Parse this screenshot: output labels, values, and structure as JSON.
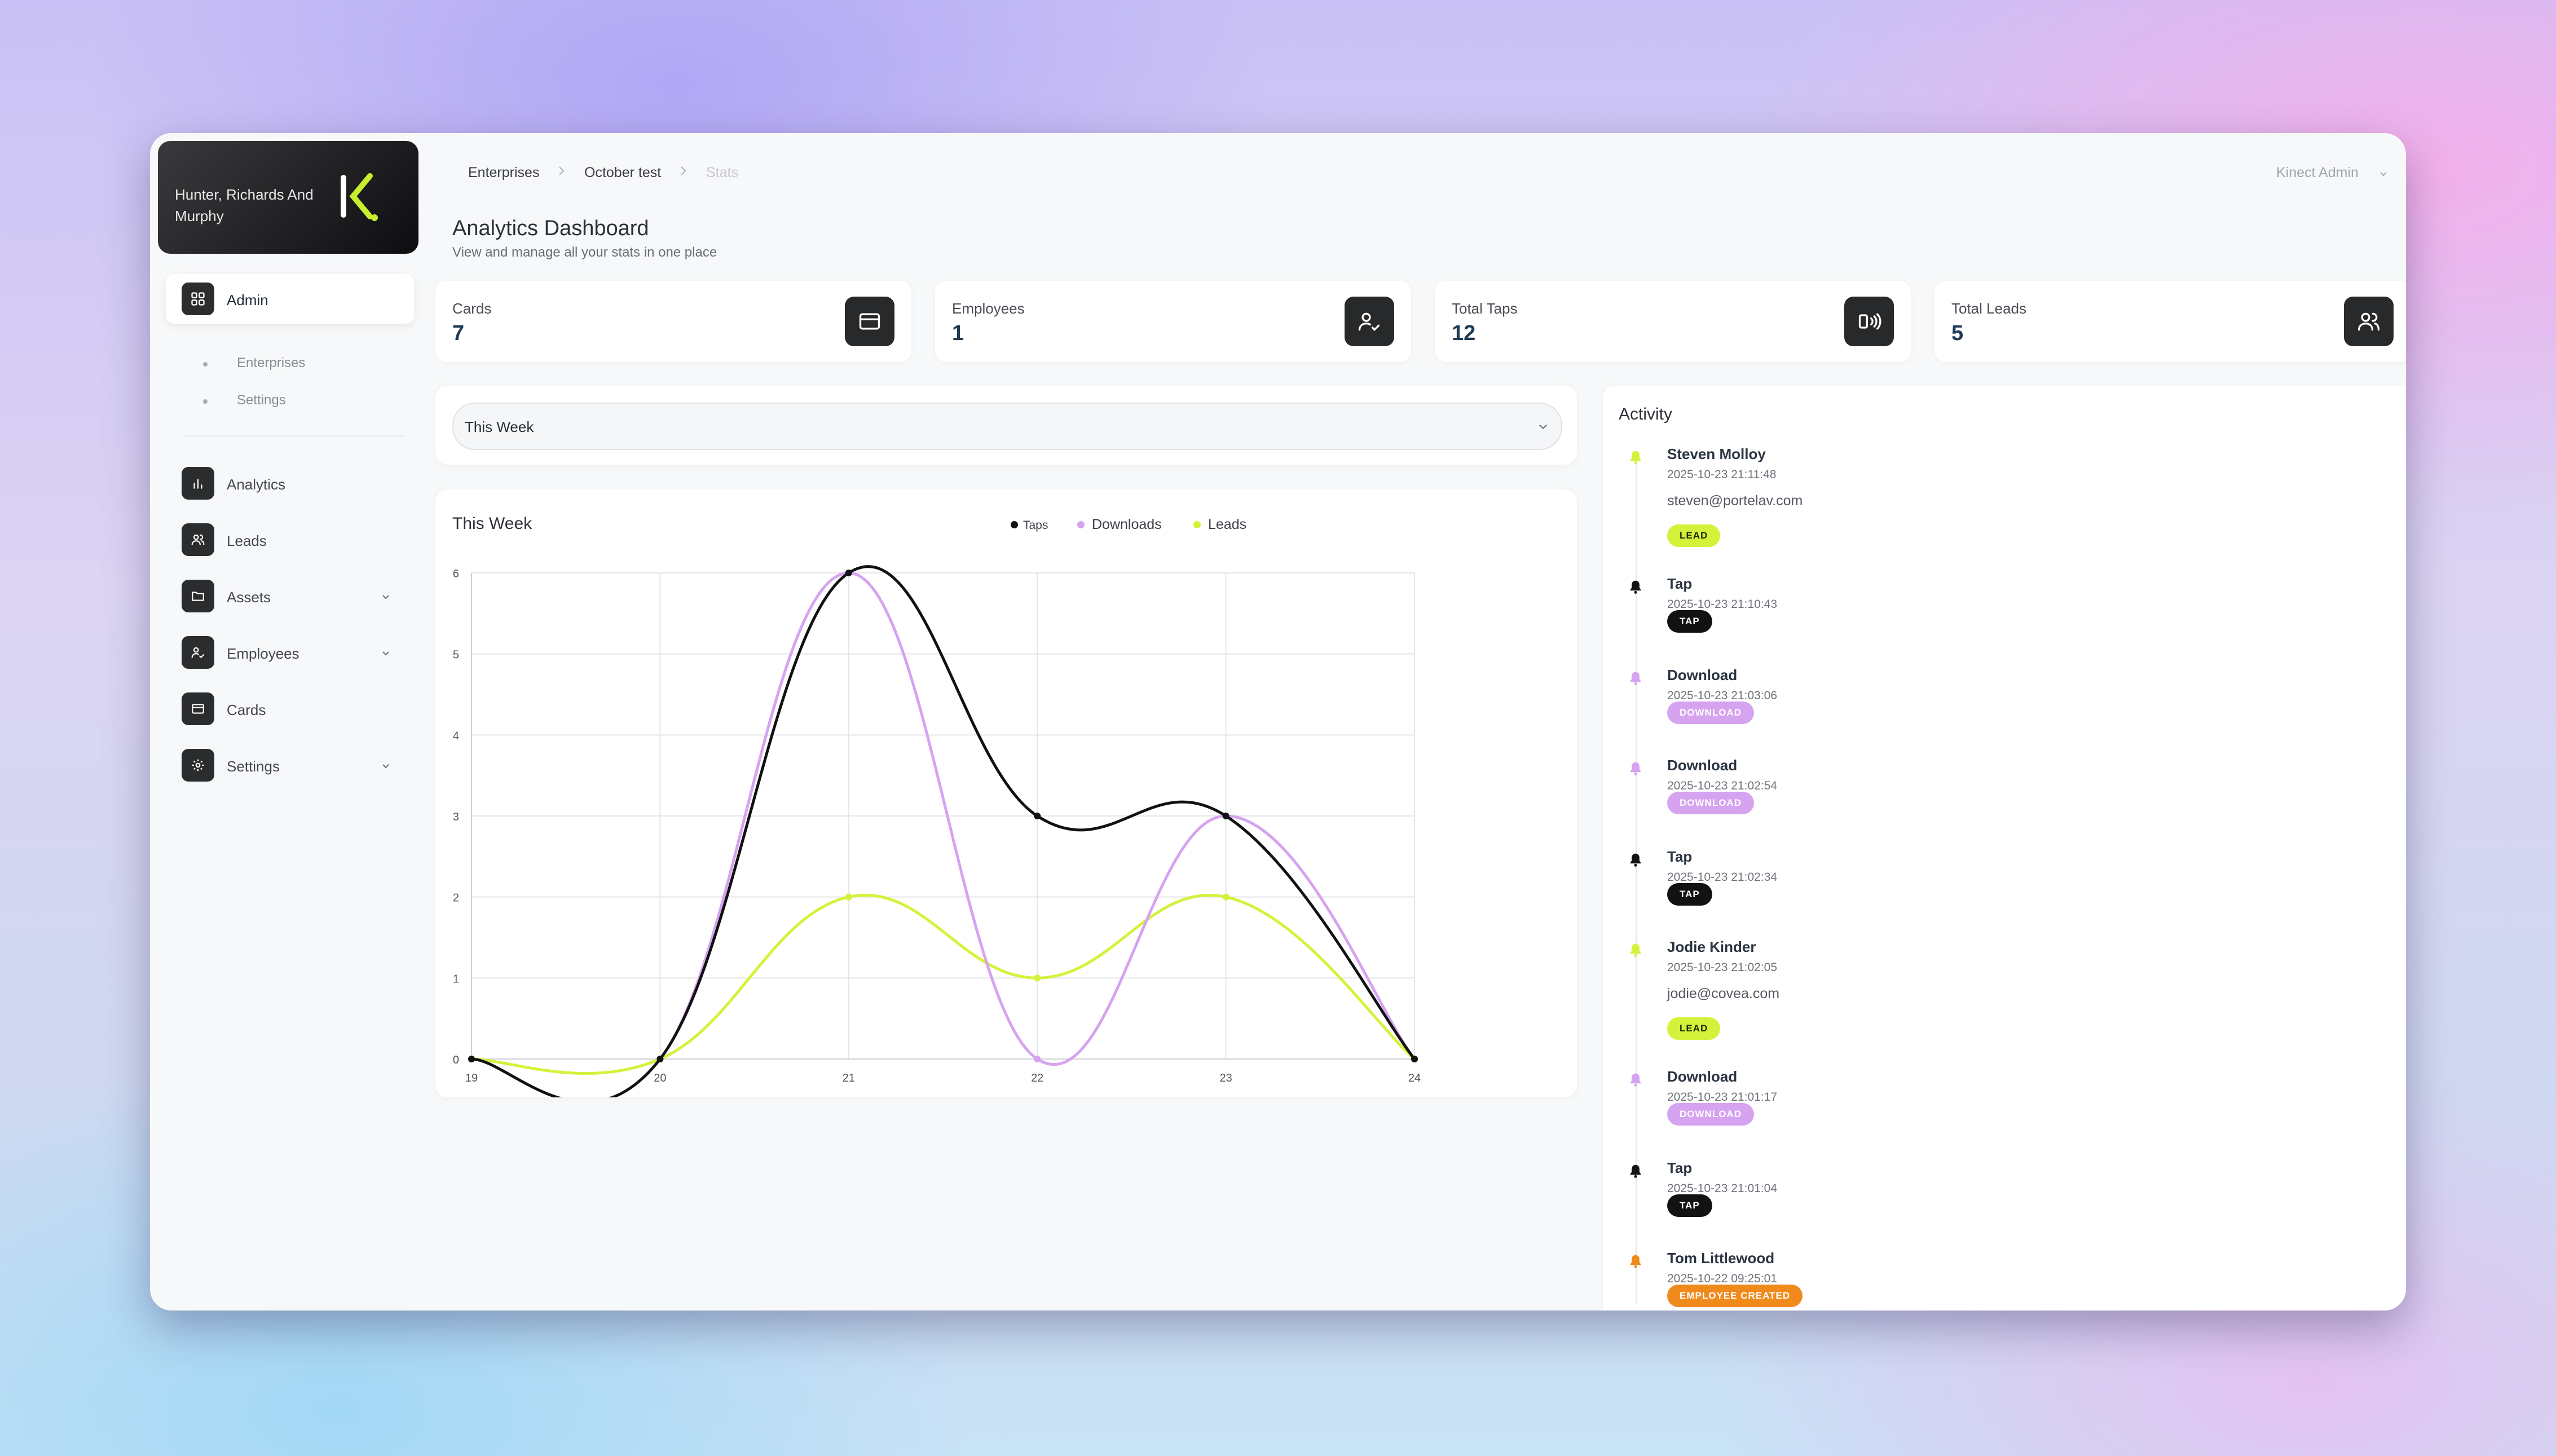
{
  "sidebar": {
    "company": "Hunter, Richards And Murphy",
    "admin_label": "Admin",
    "sub_items": [
      "Enterprises",
      "Settings"
    ],
    "items": [
      {
        "label": "Analytics",
        "icon": "bar-chart-icon"
      },
      {
        "label": "Leads",
        "icon": "users-icon"
      },
      {
        "label": "Assets",
        "icon": "folder-icon"
      },
      {
        "label": "Employees",
        "icon": "user-check-icon"
      },
      {
        "label": "Cards",
        "icon": "credit-card-icon"
      },
      {
        "label": "Settings",
        "icon": "gear-icon"
      }
    ]
  },
  "breadcrumb": [
    "Enterprises",
    "October test",
    "Stats"
  ],
  "user_menu": "Kinect Admin",
  "header": {
    "title": "Analytics Dashboard",
    "subtitle": "View and manage all your stats in one place"
  },
  "stats": [
    {
      "label": "Cards",
      "value": "7",
      "icon": "credit-card-icon"
    },
    {
      "label": "Employees",
      "value": "1",
      "icon": "user-check-icon"
    },
    {
      "label": "Total Taps",
      "value": "12",
      "icon": "nfc-tap-icon"
    },
    {
      "label": "Total Leads",
      "value": "5",
      "icon": "users-icon"
    }
  ],
  "filter": {
    "selected": "This Week"
  },
  "chart_data": {
    "type": "line",
    "title": "This Week",
    "x": [
      19,
      20,
      21,
      22,
      23,
      24
    ],
    "ylim": [
      0,
      6
    ],
    "yticks": [
      0,
      1,
      2,
      3,
      4,
      5,
      6
    ],
    "grid": true,
    "legend_position": "top-center",
    "smooth": true,
    "series": [
      {
        "name": "Taps",
        "color": "#111111",
        "values": [
          0,
          0,
          6,
          3,
          3,
          0
        ]
      },
      {
        "name": "Downloads",
        "color": "#d6a3f0",
        "values": [
          0,
          0,
          6,
          0,
          3,
          0
        ]
      },
      {
        "name": "Leads",
        "color": "#d4f23a",
        "values": [
          0,
          0,
          2,
          1,
          2,
          0
        ]
      }
    ]
  },
  "activity": {
    "title": "Activity",
    "items": [
      {
        "name": "Steven Molloy",
        "time": "2025-10-23 21:11:48",
        "email": "steven@portelav.com",
        "badge": "LEAD",
        "color": "#d4f23a",
        "text_color": "#1c2a00"
      },
      {
        "name": "Tap",
        "time": "2025-10-23 21:10:43",
        "email": "",
        "badge": "TAP",
        "color": "#121212",
        "text_color": "#ffffff"
      },
      {
        "name": "Download",
        "time": "2025-10-23 21:03:06",
        "email": "",
        "badge": "DOWNLOAD",
        "color": "#d6a3f0",
        "text_color": "#ffffff"
      },
      {
        "name": "Download",
        "time": "2025-10-23 21:02:54",
        "email": "",
        "badge": "DOWNLOAD",
        "color": "#d6a3f0",
        "text_color": "#ffffff"
      },
      {
        "name": "Tap",
        "time": "2025-10-23 21:02:34",
        "email": "",
        "badge": "TAP",
        "color": "#121212",
        "text_color": "#ffffff"
      },
      {
        "name": "Jodie Kinder",
        "time": "2025-10-23 21:02:05",
        "email": "jodie@covea.com",
        "badge": "LEAD",
        "color": "#d4f23a",
        "text_color": "#1c2a00"
      },
      {
        "name": "Download",
        "time": "2025-10-23 21:01:17",
        "email": "",
        "badge": "DOWNLOAD",
        "color": "#d6a3f0",
        "text_color": "#ffffff"
      },
      {
        "name": "Tap",
        "time": "2025-10-23 21:01:04",
        "email": "",
        "badge": "TAP",
        "color": "#121212",
        "text_color": "#ffffff"
      },
      {
        "name": "Tom Littlewood",
        "time": "2025-10-22 09:25:01",
        "email": "",
        "badge": "EMPLOYEE CREATED",
        "color": "#f08a1d",
        "text_color": "#ffffff"
      }
    ]
  }
}
